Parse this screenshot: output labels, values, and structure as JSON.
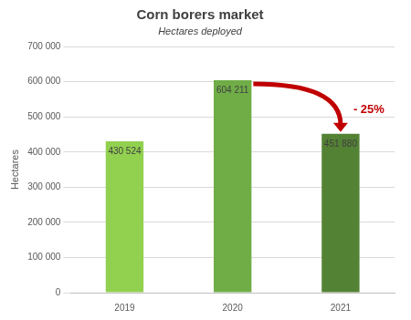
{
  "chart_data": {
    "type": "bar",
    "title": "Corn borers market",
    "subtitle": "Hectares deployed",
    "y_label": "Hectares",
    "categories": [
      "2019",
      "2020",
      "2021"
    ],
    "values": [
      430524,
      604211,
      451880
    ],
    "value_labels": [
      "430 524",
      "604 211",
      "451 880"
    ],
    "colors": [
      "#92d050",
      "#70ad47",
      "#548235"
    ],
    "ylim": [
      0,
      700000
    ],
    "yticks": [
      0,
      {
        "value": 100000,
        "label": "100 000"
      },
      {
        "value": 200000,
        "label": "200 000"
      },
      {
        "value": 300000,
        "label": "300 000"
      },
      {
        "value": 400000,
        "label": "400 000"
      },
      {
        "value": 500000,
        "label": "500 000"
      },
      {
        "value": 600000,
        "label": "600 000"
      },
      {
        "value": 700000,
        "label": "700 000"
      }
    ],
    "grid": true,
    "data_labels": true,
    "annotation": "- 25%"
  }
}
